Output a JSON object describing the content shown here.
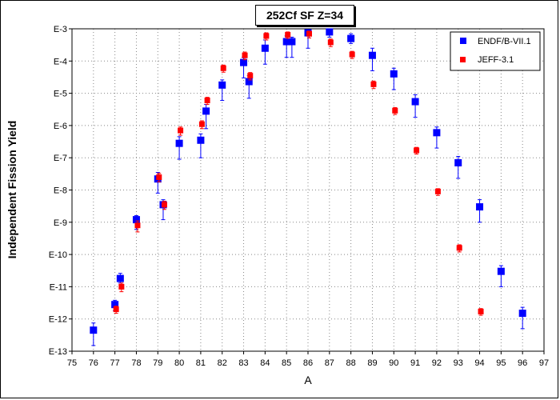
{
  "chart_data": {
    "type": "scatter",
    "title": "252Cf SF Z=34",
    "xlabel": "A",
    "ylabel": "Independent Fission Yield",
    "xlim": [
      75,
      97
    ],
    "ylim": [
      1e-13,
      0.001
    ],
    "yscale": "log",
    "xticks": [
      "75",
      "76",
      "77",
      "78",
      "79",
      "80",
      "81",
      "82",
      "83",
      "84",
      "85",
      "86",
      "87",
      "88",
      "89",
      "90",
      "91",
      "92",
      "93",
      "94",
      "95",
      "96",
      "97"
    ],
    "yticks": [
      "E-3",
      "E-4",
      "E-5",
      "E-6",
      "E-7",
      "E-8",
      "E-9",
      "E-10",
      "E-11",
      "E-12",
      "E-13"
    ],
    "grid": true,
    "legend_position": "top-right",
    "series": [
      {
        "name": "ENDF/B-VII.1",
        "color": "#0000ff",
        "marker": "square",
        "points": [
          {
            "x": 76,
            "y": 4.5e-13,
            "ylo": 1.5e-13,
            "yhi": 7.5e-13
          },
          {
            "x": 77,
            "y": 2.8e-12,
            "ylo": 1.8e-12,
            "yhi": 3.8e-12
          },
          {
            "x": 77.25,
            "y": 1.8e-11,
            "ylo": 1.3e-11,
            "yhi": 2.6e-11
          },
          {
            "x": 78,
            "y": 1.2e-09,
            "ylo": 6e-10,
            "yhi": 1.6e-09
          },
          {
            "x": 79,
            "y": 2.2e-08,
            "ylo": 8e-09,
            "yhi": 3.5e-08
          },
          {
            "x": 79.25,
            "y": 3.5e-09,
            "ylo": 1.2e-09,
            "yhi": 5e-09
          },
          {
            "x": 80,
            "y": 2.8e-07,
            "ylo": 9e-08,
            "yhi": 4.5e-07
          },
          {
            "x": 81,
            "y": 3.5e-07,
            "ylo": 1e-07,
            "yhi": 5.5e-07
          },
          {
            "x": 81.25,
            "y": 2.8e-06,
            "ylo": 8e-07,
            "yhi": 4.5e-06
          },
          {
            "x": 82,
            "y": 1.8e-05,
            "ylo": 6e-06,
            "yhi": 2.6e-05
          },
          {
            "x": 83,
            "y": 9e-05,
            "ylo": 3e-05,
            "yhi": 0.00013
          },
          {
            "x": 83.25,
            "y": 2.3e-05,
            "ylo": 7e-06,
            "yhi": 3.5e-05
          },
          {
            "x": 84,
            "y": 0.00025,
            "ylo": 8e-05,
            "yhi": 0.00045
          },
          {
            "x": 85,
            "y": 0.0004,
            "ylo": 0.00013,
            "yhi": 0.0006
          },
          {
            "x": 85.25,
            "y": 0.0004,
            "ylo": 0.00013,
            "yhi": 0.00055
          },
          {
            "x": 86,
            "y": 0.00075,
            "ylo": 0.00025,
            "yhi": 0.00095
          },
          {
            "x": 87,
            "y": 0.0008,
            "ylo": 0.00055,
            "yhi": 0.001
          },
          {
            "x": 88,
            "y": 0.0005,
            "ylo": 0.00035,
            "yhi": 0.0007
          },
          {
            "x": 89,
            "y": 0.00015,
            "ylo": 5e-05,
            "yhi": 0.00025
          },
          {
            "x": 90,
            "y": 4e-05,
            "ylo": 1.3e-05,
            "yhi": 6e-05
          },
          {
            "x": 91,
            "y": 5.5e-06,
            "ylo": 1.8e-06,
            "yhi": 9e-06
          },
          {
            "x": 92,
            "y": 6e-07,
            "ylo": 2e-07,
            "yhi": 9e-07
          },
          {
            "x": 93,
            "y": 7e-08,
            "ylo": 2.3e-08,
            "yhi": 1.1e-07
          },
          {
            "x": 94,
            "y": 3e-09,
            "ylo": 1e-09,
            "yhi": 5e-09
          },
          {
            "x": 95,
            "y": 3e-11,
            "ylo": 1e-11,
            "yhi": 4.5e-11
          },
          {
            "x": 96,
            "y": 1.5e-12,
            "ylo": 5e-13,
            "yhi": 2.3e-12
          }
        ]
      },
      {
        "name": "JEFF-3.1",
        "color": "#ff0000",
        "marker": "square",
        "points": [
          {
            "x": 77,
            "y": 2e-12,
            "ylo": 1.5e-12,
            "yhi": 2.5e-12
          },
          {
            "x": 77.25,
            "y": 1e-11,
            "ylo": 7e-12,
            "yhi": 1.3e-11
          },
          {
            "x": 78,
            "y": 8e-10,
            "ylo": 5e-10,
            "yhi": 1.1e-09
          },
          {
            "x": 79,
            "y": 2.5e-08,
            "ylo": 1.8e-08,
            "yhi": 3.3e-08
          },
          {
            "x": 79.25,
            "y": 3.5e-09,
            "ylo": 2.5e-09,
            "yhi": 4.5e-09
          },
          {
            "x": 80,
            "y": 7e-07,
            "ylo": 5e-07,
            "yhi": 9e-07
          },
          {
            "x": 81,
            "y": 1.1e-06,
            "ylo": 8e-07,
            "yhi": 1.4e-06
          },
          {
            "x": 81.25,
            "y": 6e-06,
            "ylo": 4.5e-06,
            "yhi": 7.5e-06
          },
          {
            "x": 82,
            "y": 6e-05,
            "ylo": 4.5e-05,
            "yhi": 7.5e-05
          },
          {
            "x": 83,
            "y": 0.00015,
            "ylo": 0.00011,
            "yhi": 0.00019
          },
          {
            "x": 83.25,
            "y": 3.5e-05,
            "ylo": 2.6e-05,
            "yhi": 4.4e-05
          },
          {
            "x": 84,
            "y": 0.0006,
            "ylo": 0.00045,
            "yhi": 0.00075
          },
          {
            "x": 85,
            "y": 0.00065,
            "ylo": 0.0005,
            "yhi": 0.0008
          },
          {
            "x": 86,
            "y": 0.0007,
            "ylo": 0.00052,
            "yhi": 0.00085
          },
          {
            "x": 87,
            "y": 0.00038,
            "ylo": 0.00028,
            "yhi": 0.00048
          },
          {
            "x": 88,
            "y": 0.00016,
            "ylo": 0.00012,
            "yhi": 0.0002
          },
          {
            "x": 89,
            "y": 1.9e-05,
            "ylo": 1.4e-05,
            "yhi": 2.4e-05
          },
          {
            "x": 90,
            "y": 2.9e-06,
            "ylo": 2.2e-06,
            "yhi": 3.6e-06
          },
          {
            "x": 91,
            "y": 1.7e-07,
            "ylo": 1.3e-07,
            "yhi": 2.1e-07
          },
          {
            "x": 92,
            "y": 9e-09,
            "ylo": 6.8e-09,
            "yhi": 1.1e-08
          },
          {
            "x": 93,
            "y": 1.6e-10,
            "ylo": 1.2e-10,
            "yhi": 2e-10
          },
          {
            "x": 94,
            "y": 1.7e-12,
            "ylo": 1.3e-12,
            "yhi": 2.1e-12
          }
        ]
      }
    ]
  }
}
